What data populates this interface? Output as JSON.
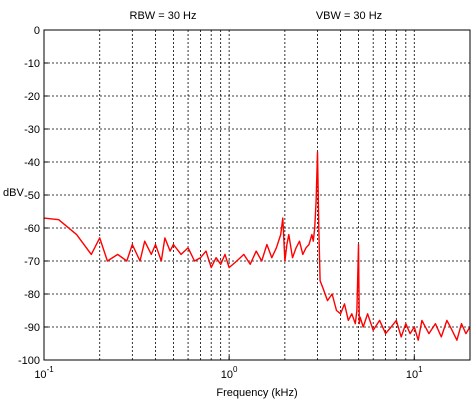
{
  "annotations": {
    "rbw": "RBW = 30 Hz",
    "vbw": "VBW = 30 Hz"
  },
  "chart_data": {
    "type": "line",
    "xlabel": "Frequency (kHz)",
    "ylabel": "dBV",
    "x_scale": "log",
    "xlim": [
      0.1,
      20
    ],
    "ylim": [
      -100,
      0
    ],
    "y_ticks": [
      0,
      -10,
      -20,
      -30,
      -40,
      -50,
      -60,
      -70,
      -80,
      -90,
      -100
    ],
    "x_ticks": [
      {
        "value": 0.1,
        "base": "10",
        "exp": "-1"
      },
      {
        "value": 1,
        "base": "10",
        "exp": "0"
      },
      {
        "value": 10,
        "base": "10",
        "exp": "1"
      }
    ],
    "grid": true,
    "series": [
      {
        "color": "#ff0000",
        "x": [
          0.1,
          0.12,
          0.15,
          0.18,
          0.2,
          0.22,
          0.25,
          0.28,
          0.3,
          0.33,
          0.35,
          0.38,
          0.4,
          0.43,
          0.45,
          0.48,
          0.5,
          0.55,
          0.6,
          0.65,
          0.7,
          0.75,
          0.8,
          0.85,
          0.9,
          0.95,
          1.0,
          1.1,
          1.2,
          1.3,
          1.4,
          1.5,
          1.6,
          1.7,
          1.8,
          1.9,
          1.95,
          2.0,
          2.05,
          2.1,
          2.2,
          2.3,
          2.4,
          2.5,
          2.6,
          2.7,
          2.8,
          2.85,
          2.9,
          2.95,
          3.0,
          3.05,
          3.1,
          3.2,
          3.4,
          3.6,
          3.8,
          4.0,
          4.2,
          4.4,
          4.6,
          4.8,
          4.9,
          5.0,
          5.05,
          5.1,
          5.3,
          5.6,
          6.0,
          6.5,
          7.0,
          7.5,
          8.0,
          8.5,
          9.0,
          9.5,
          10.0,
          10.5,
          11.0,
          12.0,
          13.0,
          14.0,
          15.0,
          16.0,
          17.0,
          18.0,
          19.0,
          20.0
        ],
        "y": [
          -57,
          -57.5,
          -62,
          -68,
          -63,
          -70,
          -68,
          -70,
          -65,
          -70,
          -64,
          -68,
          -65,
          -70,
          -63,
          -67,
          -65,
          -68,
          -66,
          -70,
          -69,
          -67,
          -72,
          -69,
          -71,
          -68,
          -72,
          -70,
          -68,
          -71,
          -67,
          -70,
          -65,
          -69,
          -66,
          -62,
          -57,
          -70,
          -65,
          -62,
          -69,
          -66,
          -64,
          -68,
          -66,
          -65,
          -62,
          -64,
          -60,
          -52,
          -37,
          -60,
          -76,
          -78,
          -82,
          -80,
          -85,
          -86,
          -83,
          -88,
          -86,
          -89,
          -85,
          -65,
          -89,
          -87,
          -90,
          -86,
          -91,
          -88,
          -92,
          -90,
          -88,
          -93,
          -89,
          -92,
          -90,
          -94,
          -88,
          -92,
          -89,
          -93,
          -88,
          -91,
          -94,
          -89,
          -92,
          -90
        ]
      }
    ]
  }
}
